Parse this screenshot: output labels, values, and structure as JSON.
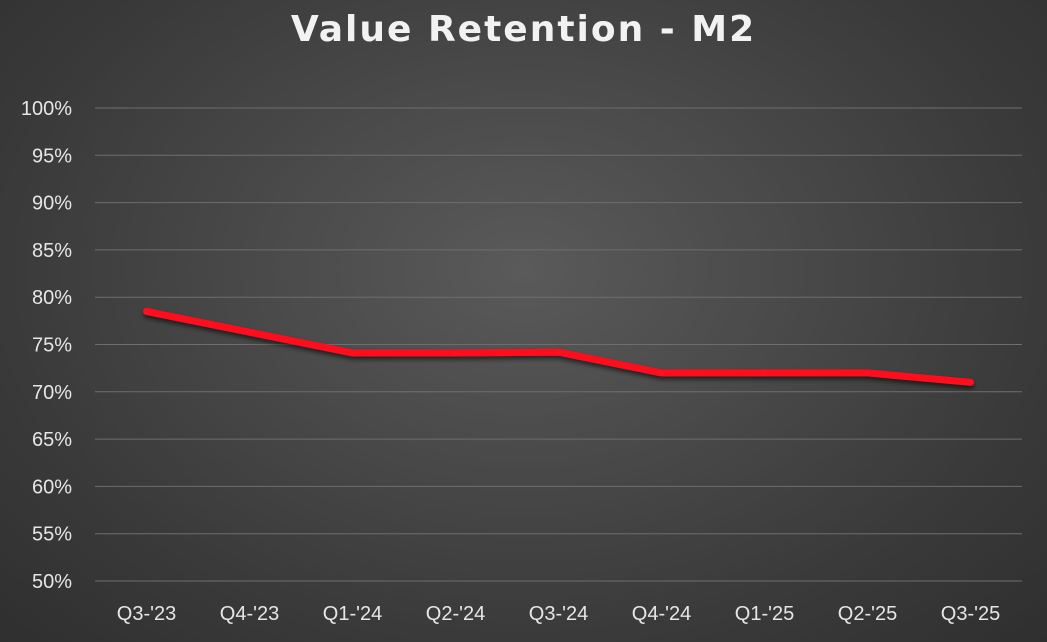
{
  "chart_data": {
    "type": "line",
    "title": "Value Retention - M2",
    "xlabel": "",
    "ylabel": "",
    "categories": [
      "Q3-'23",
      "Q4-'23",
      "Q1-'24",
      "Q2-'24",
      "Q3-'24",
      "Q4-'24",
      "Q1-'25",
      "Q2-'25",
      "Q3-'25"
    ],
    "series": [
      {
        "values": [
          78.5,
          76.3,
          74.1,
          74.1,
          74.2,
          72.0,
          72.0,
          72.0,
          71.0
        ],
        "color": "#ff0f1f"
      }
    ],
    "ylim": [
      50,
      100
    ],
    "yticks": [
      "50%",
      "55%",
      "60%",
      "65%",
      "70%",
      "75%",
      "80%",
      "85%",
      "90%",
      "95%",
      "100%"
    ],
    "grid": true,
    "legend": "none"
  }
}
